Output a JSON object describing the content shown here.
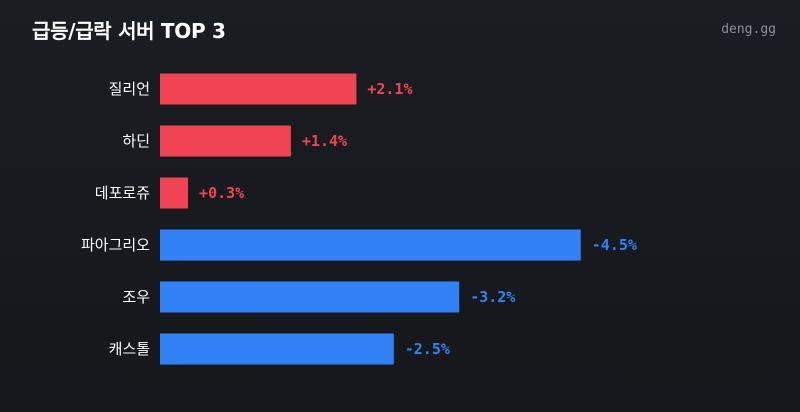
{
  "header": {
    "title": "급등/급락 서버 TOP 3",
    "watermark": "deng.gg"
  },
  "colors": {
    "up": "#f04452",
    "down": "#3182f6",
    "background": "#181a1f"
  },
  "chart_data": {
    "type": "bar",
    "orientation": "horizontal",
    "title": "급등/급락 서버 TOP 3",
    "categories": [
      "질리언",
      "하딘",
      "데포로쥬",
      "파아그리오",
      "조우",
      "캐스톨"
    ],
    "values": [
      2.1,
      1.4,
      0.3,
      -4.5,
      -3.2,
      -2.5
    ],
    "value_labels": [
      "+2.1%",
      "+1.4%",
      "+0.3%",
      "-4.5%",
      "-3.2%",
      "-2.5%"
    ],
    "unit": "%",
    "grid": false,
    "legend": "none"
  }
}
